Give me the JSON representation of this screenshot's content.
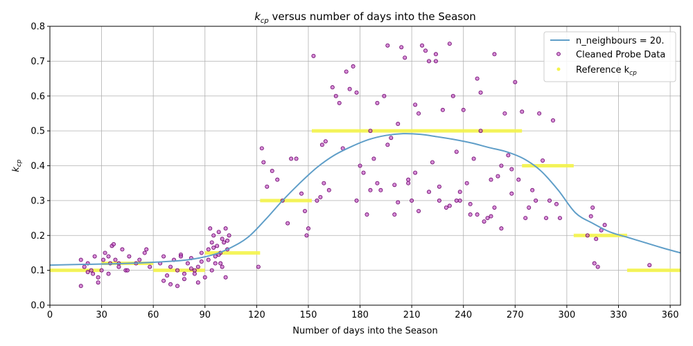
{
  "chart_data": {
    "type": "scatter",
    "title_main": "k",
    "title_sub": "cp",
    "title_rest": " versus number of days into the Season",
    "title": "k_cp versus number of days into the Season",
    "xlabel": "Number of days into the Season",
    "ylabel_main": "k",
    "ylabel_sub": "cp",
    "xlim": [
      0,
      366
    ],
    "ylim": [
      0,
      0.8
    ],
    "xticks": [
      0,
      30,
      60,
      90,
      120,
      150,
      180,
      210,
      240,
      270,
      300,
      330,
      360
    ],
    "yticks": [
      0.0,
      0.1,
      0.2,
      0.3,
      0.4,
      0.5,
      0.6,
      0.7,
      0.8
    ],
    "ytick_labels": [
      "0.0",
      "0.1",
      "0.2",
      "0.3",
      "0.4",
      "0.5",
      "0.6",
      "0.7",
      "0.8"
    ],
    "grid": true,
    "legend_position": "top-right",
    "legend": [
      {
        "label": "n_neighbours = 20.",
        "kind": "line"
      },
      {
        "label": "Cleaned Probe Data",
        "kind": "point"
      },
      {
        "label_main": "Reference k",
        "label_sub": "cp",
        "kind": "ref"
      }
    ],
    "colors": {
      "line": "#5f9ec8",
      "points_fill": "#c050c0",
      "points_edge": "#6a006a",
      "reference": "#f4f44a"
    },
    "series": [
      {
        "name": "n_neighbours = 20.",
        "kind": "line",
        "x": [
          0,
          20,
          40,
          60,
          80,
          95,
          105,
          115,
          125,
          135,
          145,
          155,
          165,
          175,
          185,
          195,
          205,
          215,
          225,
          235,
          245,
          255,
          265,
          275,
          285,
          295,
          305,
          315,
          325,
          335,
          345,
          355,
          366
        ],
        "y": [
          0.115,
          0.117,
          0.119,
          0.123,
          0.13,
          0.145,
          0.165,
          0.195,
          0.245,
          0.3,
          0.35,
          0.395,
          0.43,
          0.455,
          0.475,
          0.487,
          0.492,
          0.49,
          0.483,
          0.475,
          0.465,
          0.452,
          0.44,
          0.42,
          0.385,
          0.33,
          0.265,
          0.235,
          0.21,
          0.195,
          0.18,
          0.165,
          0.15
        ]
      },
      {
        "name": "Cleaned Probe Data",
        "kind": "scatter",
        "x": [
          18,
          20,
          22,
          24,
          26,
          28,
          30,
          32,
          34,
          36,
          38,
          40,
          42,
          44,
          46,
          50,
          55,
          58,
          18,
          25,
          28,
          31,
          34,
          37,
          40,
          22,
          35,
          45,
          52,
          56,
          64,
          66,
          68,
          70,
          72,
          74,
          76,
          78,
          80,
          82,
          84,
          86,
          88,
          90,
          70,
          74,
          78,
          82,
          86,
          88,
          66,
          76,
          84,
          92,
          93,
          94,
          95,
          96,
          97,
          98,
          99,
          100,
          101,
          102,
          103,
          104,
          92,
          94,
          96,
          98,
          100,
          102,
          95,
          99,
          103,
          121,
          123,
          124,
          126,
          129,
          132,
          135,
          138,
          140,
          143,
          146,
          148,
          149,
          150,
          153,
          155,
          157,
          158,
          159,
          160,
          162,
          164,
          166,
          168,
          170,
          172,
          174,
          176,
          178,
          180,
          182,
          184,
          186,
          188,
          190,
          192,
          194,
          196,
          198,
          200,
          202,
          204,
          206,
          208,
          210,
          212,
          214,
          216,
          218,
          220,
          222,
          224,
          226,
          228,
          230,
          232,
          234,
          236,
          238,
          240,
          242,
          244,
          246,
          248,
          250,
          252,
          254,
          256,
          258,
          260,
          262,
          264,
          266,
          268,
          270,
          190,
          196,
          202,
          208,
          214,
          220,
          226,
          232,
          238,
          244,
          250,
          256,
          262,
          268,
          178,
          186,
          200,
          212,
          224,
          236,
          248,
          258,
          272,
          274,
          276,
          278,
          280,
          282,
          284,
          286,
          288,
          290,
          292,
          294,
          296,
          312,
          314,
          315,
          316,
          317,
          318,
          320,
          322,
          348
        ],
        "y": [
          0.13,
          0.11,
          0.12,
          0.1,
          0.14,
          0.08,
          0.1,
          0.15,
          0.09,
          0.17,
          0.13,
          0.12,
          0.16,
          0.1,
          0.14,
          0.12,
          0.15,
          0.11,
          0.055,
          0.09,
          0.065,
          0.13,
          0.14,
          0.175,
          0.11,
          0.095,
          0.12,
          0.1,
          0.13,
          0.16,
          0.12,
          0.14,
          0.085,
          0.11,
          0.13,
          0.1,
          0.145,
          0.075,
          0.12,
          0.135,
          0.09,
          0.11,
          0.15,
          0.08,
          0.06,
          0.055,
          0.09,
          0.105,
          0.065,
          0.125,
          0.07,
          0.14,
          0.1,
          0.16,
          0.22,
          0.18,
          0.2,
          0.14,
          0.17,
          0.21,
          0.15,
          0.19,
          0.18,
          0.22,
          0.16,
          0.2,
          0.13,
          0.1,
          0.12,
          0.145,
          0.11,
          0.08,
          0.165,
          0.12,
          0.185,
          0.11,
          0.45,
          0.41,
          0.34,
          0.385,
          0.36,
          0.3,
          0.235,
          0.42,
          0.42,
          0.32,
          0.27,
          0.2,
          0.22,
          0.715,
          0.3,
          0.31,
          0.46,
          0.35,
          0.47,
          0.33,
          0.625,
          0.6,
          0.58,
          0.45,
          0.67,
          0.62,
          0.685,
          0.3,
          0.4,
          0.38,
          0.26,
          0.5,
          0.42,
          0.58,
          0.33,
          0.6,
          0.745,
          0.48,
          0.26,
          0.52,
          0.74,
          0.71,
          0.36,
          0.3,
          0.575,
          0.27,
          0.745,
          0.73,
          0.7,
          0.41,
          0.72,
          0.34,
          0.56,
          0.28,
          0.75,
          0.6,
          0.44,
          0.3,
          0.56,
          0.35,
          0.26,
          0.42,
          0.26,
          0.5,
          0.24,
          0.25,
          0.36,
          0.72,
          0.37,
          0.4,
          0.55,
          0.43,
          0.32,
          0.64,
          0.35,
          0.46,
          0.295,
          0.35,
          0.55,
          0.325,
          0.3,
          0.285,
          0.325,
          0.29,
          0.61,
          0.255,
          0.22,
          0.39,
          0.61,
          0.33,
          0.345,
          0.38,
          0.7,
          0.3,
          0.65,
          0.28,
          0.36,
          0.555,
          0.25,
          0.28,
          0.33,
          0.3,
          0.55,
          0.415,
          0.25,
          0.3,
          0.53,
          0.29,
          0.25,
          0.2,
          0.255,
          0.28,
          0.12,
          0.19,
          0.11,
          0.215,
          0.23,
          0.115
        ]
      },
      {
        "name": "Reference k_cp",
        "kind": "reference",
        "segments": [
          {
            "x0": 0,
            "x1": 30,
            "y": 0.1
          },
          {
            "x0": 30,
            "x1": 60,
            "y": 0.12
          },
          {
            "x0": 60,
            "x1": 90,
            "y": 0.1
          },
          {
            "x0": 90,
            "x1": 122,
            "y": 0.15
          },
          {
            "x0": 122,
            "x1": 152,
            "y": 0.3
          },
          {
            "x0": 152,
            "x1": 274,
            "y": 0.5
          },
          {
            "x0": 274,
            "x1": 304,
            "y": 0.4
          },
          {
            "x0": 304,
            "x1": 335,
            "y": 0.2
          },
          {
            "x0": 335,
            "x1": 366,
            "y": 0.1
          }
        ]
      }
    ]
  }
}
